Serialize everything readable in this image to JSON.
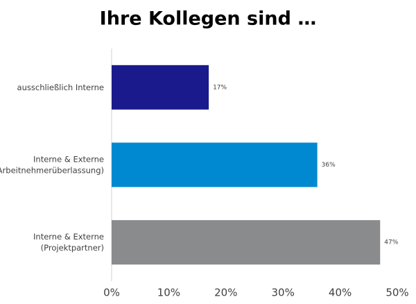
{
  "chart_data": {
    "type": "hbar",
    "title": "Ihre Kollegen sind …",
    "categories": [
      [
        "ausschließlich Interne"
      ],
      [
        "Interne & Externe",
        "(Arbeitnehmerüberlassung)"
      ],
      [
        "Interne & Externe",
        "(Projektpartner)"
      ]
    ],
    "values": [
      17,
      36,
      47
    ],
    "value_labels": [
      "17%",
      "36%",
      "47%"
    ],
    "colors": [
      "#1a1a8c",
      "#0089d0",
      "#8a8b8d"
    ],
    "xlim": [
      0,
      50
    ],
    "xticks": [
      {
        "value": 0,
        "label": "0%"
      },
      {
        "value": 10,
        "label": "10%"
      },
      {
        "value": 20,
        "label": "20%"
      },
      {
        "value": 30,
        "label": "30%"
      },
      {
        "value": 40,
        "label": "40%"
      },
      {
        "value": 50,
        "label": "50%"
      }
    ]
  }
}
